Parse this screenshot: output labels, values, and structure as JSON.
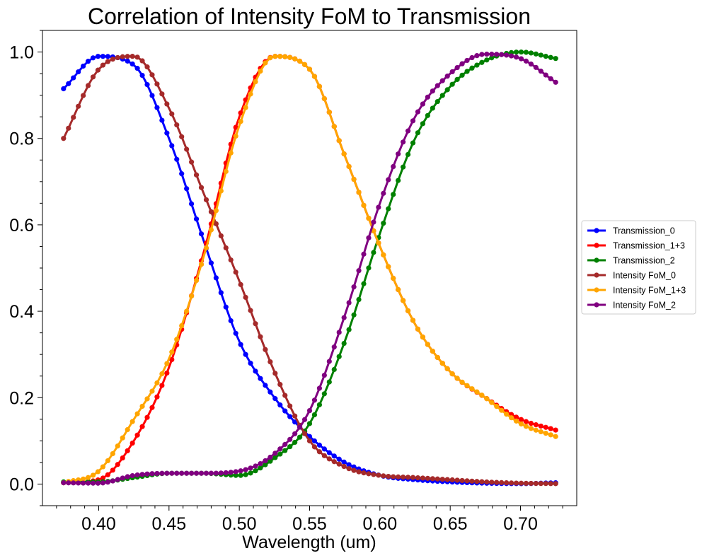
{
  "chart_data": {
    "type": "line",
    "title": "Correlation of Intensity FoM to Transmission",
    "xlabel": "Wavelength (um)",
    "ylabel": "",
    "xlim": [
      0.36,
      0.74
    ],
    "ylim": [
      -0.05,
      1.05
    ],
    "x_ticks": [
      0.4,
      0.45,
      0.5,
      0.55,
      0.6,
      0.65,
      0.7
    ],
    "x_tick_labels": [
      "0.40",
      "0.45",
      "0.50",
      "0.55",
      "0.60",
      "0.65",
      "0.70"
    ],
    "y_ticks": [
      0.0,
      0.2,
      0.4,
      0.6,
      0.8,
      1.0
    ],
    "y_tick_labels": [
      "0.0",
      "0.2",
      "0.4",
      "0.6",
      "0.8",
      "1.0"
    ],
    "grid": false,
    "legend_position": "center-right outside",
    "markers": "circle",
    "x": [
      0.375,
      0.4,
      0.425,
      0.45,
      0.475,
      0.5,
      0.525,
      0.55,
      0.575,
      0.6,
      0.625,
      0.65,
      0.675,
      0.7,
      0.725
    ],
    "series": [
      {
        "name": "Transmission_0",
        "color": "#0000ff",
        "values": [
          0.915,
          0.99,
          0.97,
          0.8,
          0.56,
          0.33,
          0.2,
          0.11,
          0.05,
          0.02,
          0.01,
          0.005,
          0.002,
          0.001,
          0.003
        ]
      },
      {
        "name": "Transmission_1+3",
        "color": "#ff0000",
        "values": [
          0.003,
          0.01,
          0.1,
          0.27,
          0.54,
          0.85,
          0.99,
          0.96,
          0.76,
          0.55,
          0.37,
          0.26,
          0.2,
          0.15,
          0.125
        ]
      },
      {
        "name": "Transmission_2",
        "color": "#008000",
        "values": [
          0.005,
          0.005,
          0.015,
          0.025,
          0.025,
          0.02,
          0.06,
          0.14,
          0.33,
          0.58,
          0.8,
          0.92,
          0.98,
          1.0,
          0.985
        ]
      },
      {
        "name": "Intensity FoM_0",
        "color": "#a52a2a",
        "values": [
          0.8,
          0.96,
          0.99,
          0.87,
          0.67,
          0.47,
          0.26,
          0.1,
          0.04,
          0.02,
          0.015,
          0.01,
          0.005,
          0.002,
          0.001
        ]
      },
      {
        "name": "Intensity FoM_1+3",
        "color": "#ffa500",
        "values": [
          0.003,
          0.03,
          0.15,
          0.29,
          0.53,
          0.83,
          0.99,
          0.96,
          0.76,
          0.55,
          0.37,
          0.26,
          0.2,
          0.14,
          0.11
        ]
      },
      {
        "name": "Intensity FoM_2",
        "color": "#800080",
        "values": [
          0.003,
          0.002,
          0.02,
          0.025,
          0.025,
          0.03,
          0.07,
          0.17,
          0.39,
          0.65,
          0.85,
          0.95,
          0.995,
          0.985,
          0.93
        ]
      }
    ]
  }
}
